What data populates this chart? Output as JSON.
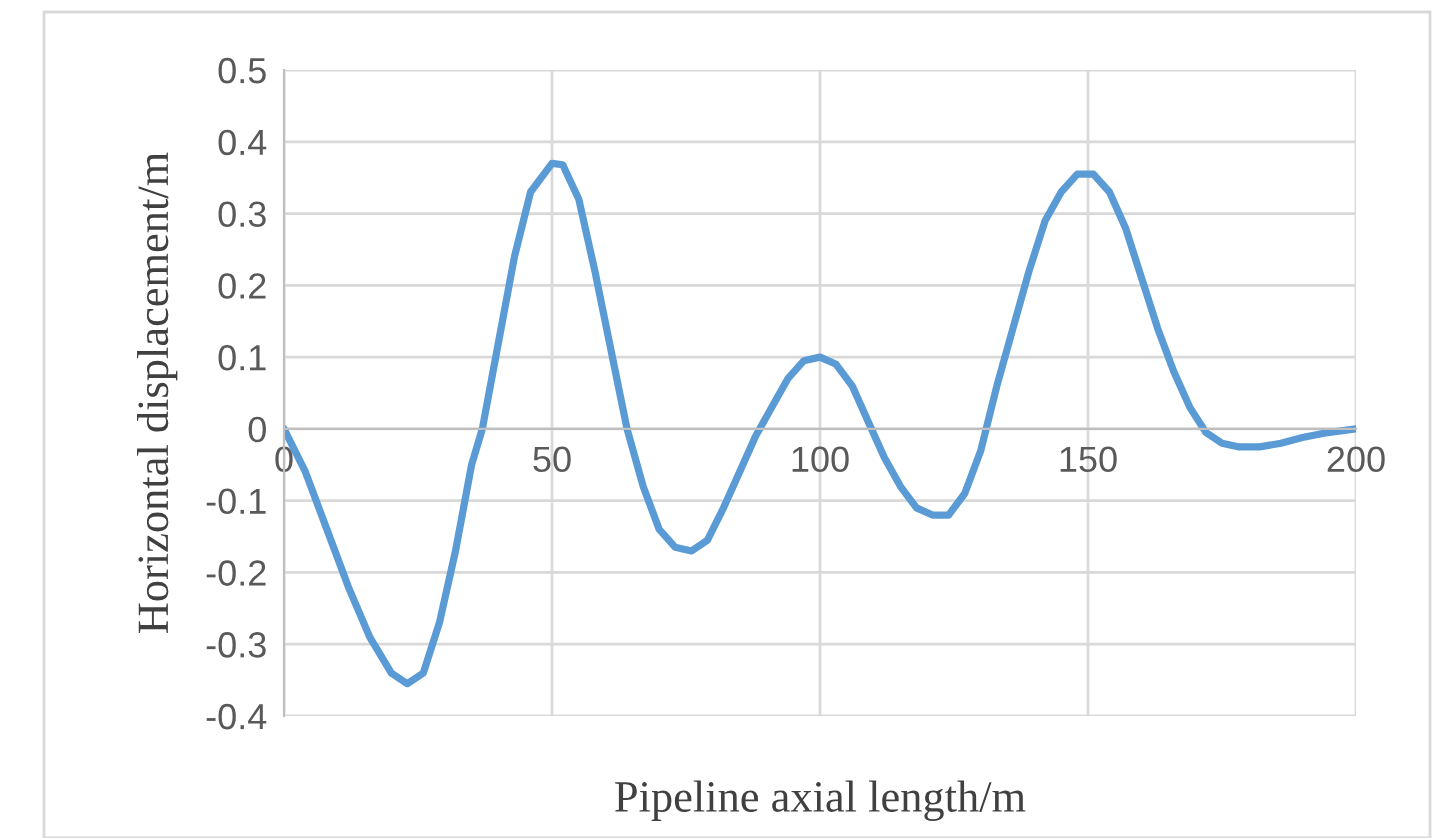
{
  "chart_data": {
    "type": "line",
    "xlabel": "Pipeline axial length/m",
    "ylabel": "Horizontal displacement/m",
    "series": [
      {
        "color": "#5b9bd5",
        "x": [
          0,
          4,
          8,
          12,
          16,
          20,
          23,
          26,
          29,
          32,
          35,
          37,
          40,
          43,
          46,
          50,
          52,
          55,
          58,
          61,
          64,
          67,
          70,
          73,
          76,
          79,
          82,
          85,
          88,
          91,
          94,
          97,
          100,
          103,
          106,
          109,
          112,
          115,
          118,
          121,
          124,
          127,
          130,
          133,
          136,
          139,
          142,
          145,
          148,
          151,
          154,
          157,
          160,
          163,
          166,
          169,
          172,
          175,
          178,
          182,
          186,
          190,
          194,
          200
        ],
        "values": [
          0,
          -0.06,
          -0.14,
          -0.22,
          -0.29,
          -0.34,
          -0.355,
          -0.34,
          -0.27,
          -0.17,
          -0.05,
          0,
          0.12,
          0.24,
          0.33,
          0.37,
          0.368,
          0.32,
          0.22,
          0.11,
          0.0,
          -0.08,
          -0.14,
          -0.165,
          -0.17,
          -0.155,
          -0.11,
          -0.06,
          -0.01,
          0.03,
          0.07,
          0.095,
          0.1,
          0.09,
          0.06,
          0.01,
          -0.04,
          -0.08,
          -0.11,
          -0.12,
          -0.12,
          -0.09,
          -0.03,
          0.06,
          0.14,
          0.22,
          0.29,
          0.33,
          0.355,
          0.355,
          0.33,
          0.28,
          0.21,
          0.14,
          0.08,
          0.03,
          -0.005,
          -0.02,
          -0.025,
          -0.025,
          -0.02,
          -0.012,
          -0.006,
          0
        ]
      }
    ],
    "xlim": [
      0,
      200
    ],
    "xticks": [
      0,
      50,
      100,
      150,
      200
    ],
    "ylim": [
      -0.4,
      0.5
    ],
    "yticks": [
      {
        "value": -0.4,
        "label": "-0.4"
      },
      {
        "value": -0.3,
        "label": "-0.3"
      },
      {
        "value": -0.2,
        "label": "-0.2"
      },
      {
        "value": -0.1,
        "label": "-0.1"
      },
      0,
      {
        "value": 0.1,
        "label": "0.1"
      },
      {
        "value": 0.2,
        "label": "0.2"
      },
      {
        "value": 0.3,
        "label": "0.3"
      },
      {
        "value": 0.4,
        "label": "0.4"
      },
      {
        "value": 0.5,
        "label": "0.5"
      }
    ],
    "grid": true,
    "legend": false,
    "marker": "none",
    "line_style": "solid"
  }
}
